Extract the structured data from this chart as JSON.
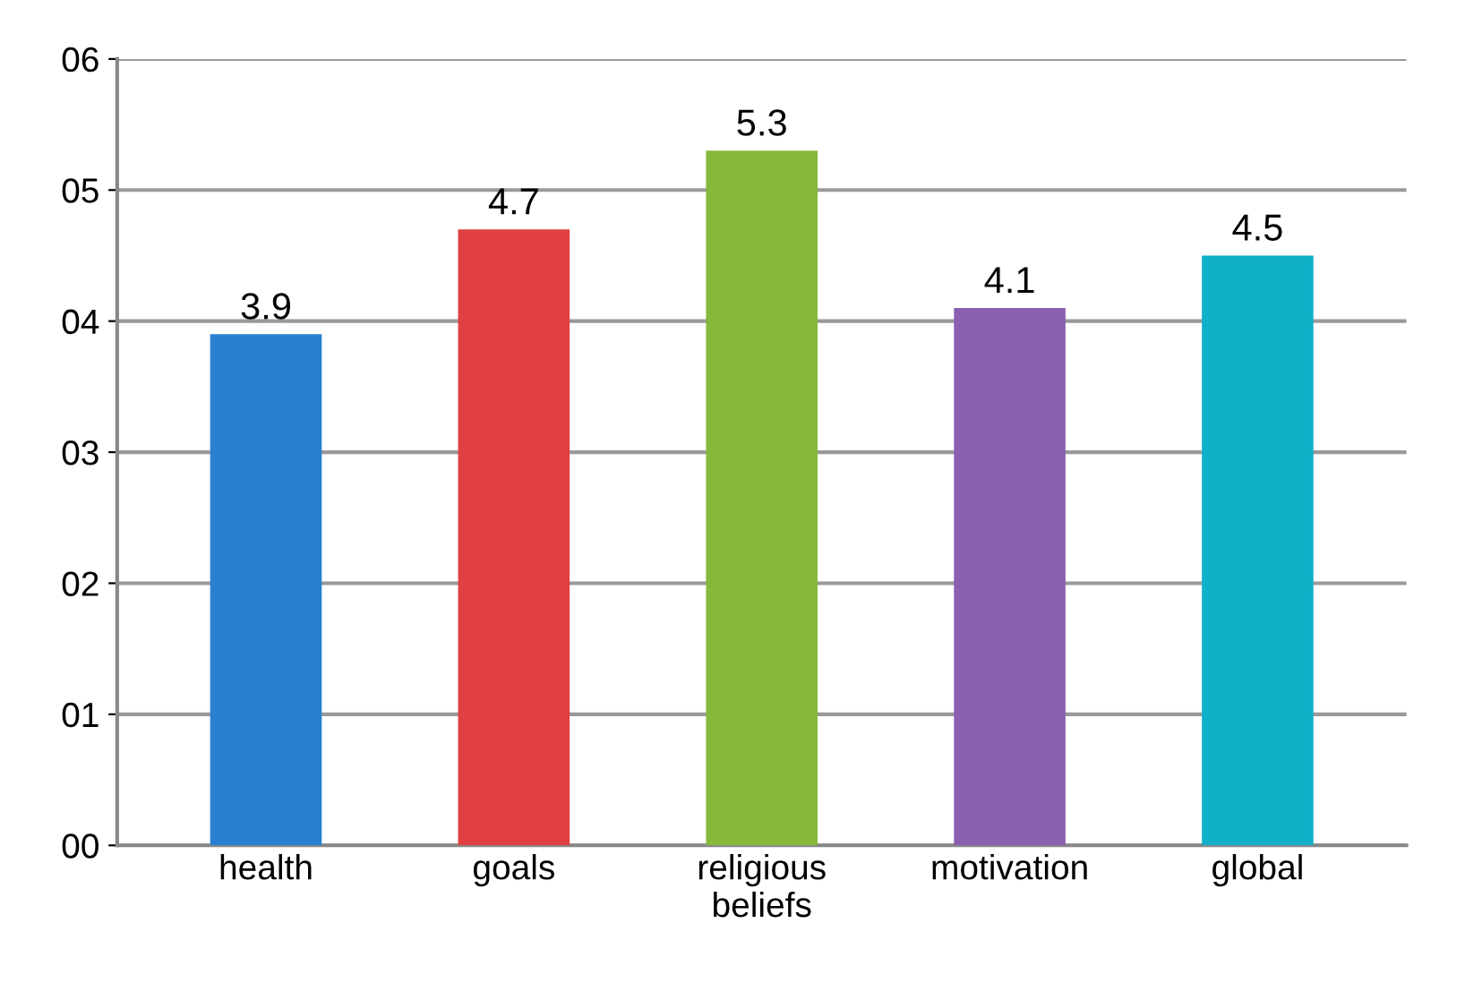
{
  "chart_data": {
    "type": "bar",
    "categories": [
      "health",
      "goals",
      "religious\nbeliefs",
      "motivation",
      "global"
    ],
    "values": [
      3.9,
      4.7,
      5.3,
      4.1,
      4.5
    ],
    "colors": [
      "#2a7fd0",
      "#e0403f",
      "#86b83a",
      "#8a5fb0",
      "#10b0c8"
    ],
    "ylim": [
      0,
      6
    ],
    "yticks": [
      {
        "value": 0,
        "label": "00"
      },
      {
        "value": 1,
        "label": "01"
      },
      {
        "value": 2,
        "label": "02"
      },
      {
        "value": 3,
        "label": "03"
      },
      {
        "value": 4,
        "label": "04"
      },
      {
        "value": 5,
        "label": "05"
      },
      {
        "value": 6,
        "label": "06"
      }
    ],
    "grid": "y",
    "data_labels": true,
    "legend": false
  }
}
